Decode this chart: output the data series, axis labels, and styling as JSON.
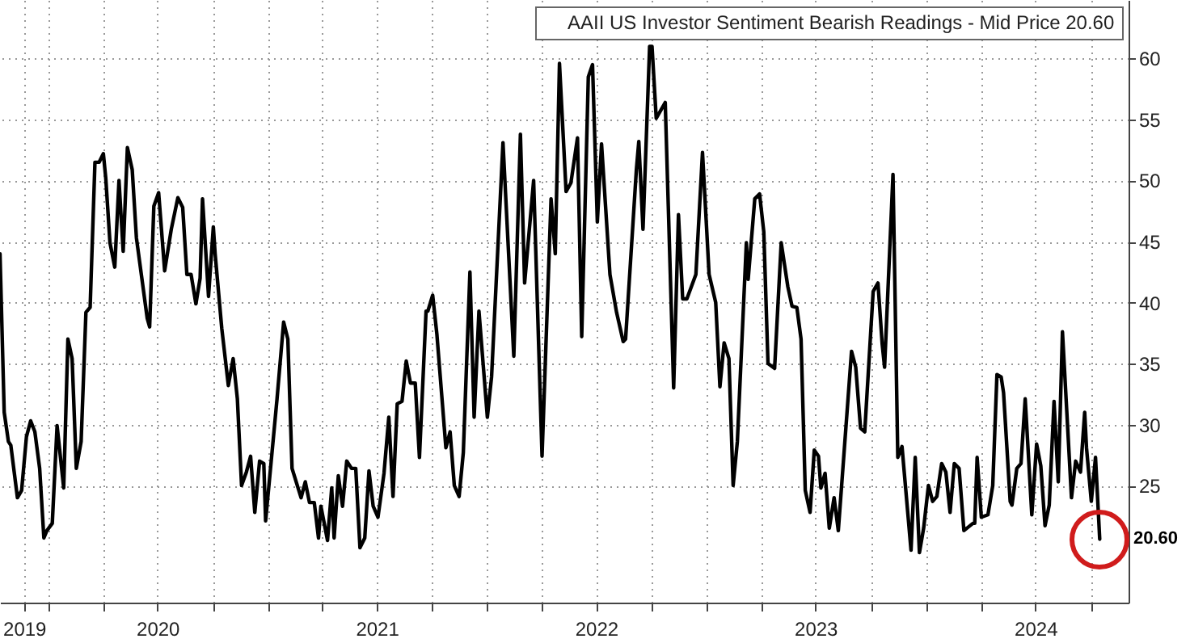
{
  "chart_data": {
    "type": "line",
    "x": [
      "2019-10-13",
      "2019-10-20",
      "2019-10-27",
      "2019-10-31",
      "2019-11-11",
      "2019-11-18",
      "2019-11-26",
      "2019-12-03",
      "2019-12-10",
      "2019-12-18",
      "2019-12-25",
      "2019-12-30",
      "2020-01-08",
      "2020-01-16",
      "2020-01-27",
      "2020-02-03",
      "2020-02-10",
      "2020-02-17",
      "2020-02-25",
      "2020-03-04",
      "2020-03-11",
      "2020-03-19",
      "2020-03-26",
      "2020-04-02",
      "2020-04-06",
      "2020-04-13",
      "2020-04-21",
      "2020-04-28",
      "2020-05-05",
      "2020-05-12",
      "2020-05-20",
      "2020-05-27",
      "2020-06-14",
      "2020-06-18",
      "2020-06-25",
      "2020-07-03",
      "2020-07-13",
      "2020-07-24",
      "2020-08-04",
      "2020-08-12",
      "2020-08-19",
      "2020-08-26",
      "2020-09-03",
      "2020-09-10",
      "2020-09-14",
      "2020-09-24",
      "2020-10-02",
      "2020-10-05",
      "2020-10-16",
      "2020-10-27",
      "2020-11-04",
      "2020-11-11",
      "2020-11-18",
      "2020-11-26",
      "2020-12-03",
      "2020-12-10",
      "2020-12-18",
      "2020-12-25",
      "2020-12-28",
      "2021-01-16",
      "2021-01-27",
      "2021-02-03",
      "2021-02-10",
      "2021-02-25",
      "2021-03-04",
      "2021-03-11",
      "2021-03-19",
      "2021-03-26",
      "2021-03-30",
      "2021-04-10",
      "2021-04-17",
      "2021-04-21",
      "2021-04-28",
      "2021-05-05",
      "2021-05-12",
      "2021-05-20",
      "2021-05-27",
      "2021-06-03",
      "2021-06-11",
      "2021-06-18",
      "2021-06-25",
      "2021-07-03",
      "2021-07-13",
      "2021-07-21",
      "2021-07-28",
      "2021-08-04",
      "2021-08-12",
      "2021-08-19",
      "2021-08-26",
      "2021-09-03",
      "2021-09-10",
      "2021-09-21",
      "2021-09-24",
      "2021-10-02",
      "2021-10-09",
      "2021-10-24",
      "2021-10-31",
      "2021-11-07",
      "2021-11-15",
      "2021-11-22",
      "2021-12-03",
      "2021-12-10",
      "2021-12-18",
      "2022-01-01",
      "2022-01-08",
      "2022-01-27",
      "2022-02-14",
      "2022-02-25",
      "2022-03-04",
      "2022-03-19",
      "2022-04-02",
      "2022-04-17",
      "2022-04-24",
      "2022-05-01",
      "2022-05-12",
      "2022-05-20",
      "2022-05-31",
      "2022-06-07",
      "2022-06-18",
      "2022-06-25",
      "2022-07-03",
      "2022-07-10",
      "2022-07-24",
      "2022-08-04",
      "2022-08-15",
      "2022-08-19",
      "2022-09-06",
      "2022-09-10",
      "2022-09-17",
      "2022-09-28",
      "2022-10-02",
      "2022-10-09",
      "2022-10-24",
      "2022-11-07",
      "2022-11-15",
      "2022-11-22",
      "2022-11-29",
      "2022-12-14",
      "2022-12-25",
      "2023-01-05",
      "2023-01-16",
      "2023-01-23",
      "2023-01-30",
      "2023-02-07",
      "2023-02-14",
      "2023-02-21",
      "2023-03-08",
      "2023-03-11",
      "2023-03-22",
      "2023-03-30",
      "2023-04-06",
      "2023-04-13",
      "2023-04-24",
      "2023-05-05",
      "2023-05-16",
      "2023-05-23",
      "2023-05-31",
      "2023-06-07",
      "2023-06-14",
      "2023-06-22",
      "2023-06-29",
      "2023-07-06",
      "2023-07-10",
      "2023-07-17",
      "2023-07-24",
      "2023-08-01",
      "2023-08-08",
      "2023-08-30",
      "2023-09-06",
      "2023-09-14",
      "2023-09-21",
      "2023-10-05",
      "2023-10-13",
      "2023-10-20",
      "2023-10-24",
      "2023-11-07",
      "2023-11-15",
      "2023-11-22",
      "2023-12-07",
      "2023-12-14",
      "2023-12-21",
      "2023-12-28",
      "2024-01-05",
      "2024-01-12",
      "2024-01-19",
      "2024-01-27",
      "2024-02-03",
      "2024-02-10",
      "2024-02-17",
      "2024-02-25",
      "2024-03-04",
      "2024-03-19",
      "2024-03-22",
      "2024-03-26",
      "2024-04-02",
      "2024-04-13",
      "2024-04-21",
      "2024-04-28",
      "2024-05-05",
      "2024-05-09",
      "2024-05-20",
      "2024-05-23",
      "2024-05-31",
      "2024-06-07",
      "2024-06-14",
      "2024-06-25",
      "2024-07-03",
      "2024-07-10",
      "2024-07-17",
      "2024-07-24",
      "2024-08-01",
      "2024-08-08",
      "2024-08-15",
      "2024-08-30",
      "2024-09-06",
      "2024-09-14",
      "2024-09-21",
      "2024-09-24",
      "2024-10-02",
      "2024-10-09",
      "2024-10-16"
    ],
    "series": [
      {
        "name": "AAII US Investor Sentiment Bearish Readings - Mid Price 20.60",
        "color": "#000000",
        "axis": "y2",
        "values": [
          44.0,
          31.0,
          28.6,
          28.3,
          24.0,
          24.6,
          29.0,
          30.3,
          29.4,
          26.4,
          20.7,
          21.3,
          21.9,
          29.9,
          24.8,
          37.0,
          35.4,
          26.4,
          28.6,
          39.2,
          39.6,
          51.5,
          51.5,
          52.2,
          50.2,
          44.9,
          42.9,
          50.0,
          44.2,
          52.7,
          50.9,
          45.3,
          38.7,
          38.0,
          47.9,
          49.0,
          42.6,
          46.0,
          48.6,
          47.8,
          42.3,
          42.3,
          39.9,
          42.0,
          48.5,
          40.5,
          46.2,
          44.0,
          37.9,
          33.2,
          35.4,
          32.1,
          25.0,
          26.1,
          27.4,
          22.8,
          27.0,
          26.8,
          22.1,
          32.1,
          38.4,
          37.0,
          26.4,
          24.0,
          25.3,
          23.6,
          23.6,
          20.7,
          23.3,
          20.5,
          24.8,
          20.7,
          25.8,
          23.3,
          27.0,
          26.4,
          26.4,
          19.9,
          20.7,
          26.2,
          23.3,
          22.4,
          26.0,
          30.6,
          24.1,
          31.7,
          31.9,
          35.2,
          33.4,
          33.4,
          27.3,
          39.3,
          39.3,
          40.6,
          37.4,
          28.1,
          29.4,
          25.0,
          24.1,
          27.7,
          42.5,
          30.6,
          39.3,
          30.6,
          33.9,
          53.1,
          35.6,
          53.8,
          41.6,
          50.0,
          27.4,
          48.5,
          44.0,
          59.6,
          49.1,
          49.8,
          53.5,
          37.2,
          58.5,
          59.5,
          46.6,
          53.0,
          42.3,
          39.2,
          36.8,
          37.0,
          50.9,
          53.2,
          46.0,
          61.0,
          61.0,
          55.1,
          56.4,
          33.0,
          47.2,
          40.3,
          40.3,
          42.3,
          52.3,
          42.3,
          40.0,
          33.1,
          36.7,
          35.4,
          25.0,
          28.6,
          44.9,
          41.9,
          48.5,
          48.9,
          45.8,
          35.0,
          34.6,
          44.9,
          41.3,
          39.7,
          39.6,
          37.0,
          24.6,
          22.8,
          27.9,
          27.4,
          24.8,
          26.0,
          21.5,
          24.0,
          21.3,
          36.0,
          34.7,
          29.7,
          29.4,
          40.9,
          41.6,
          36.6,
          34.7,
          50.5,
          27.3,
          28.2,
          19.7,
          27.3,
          19.5,
          21.5,
          25.0,
          23.7,
          24.1,
          26.8,
          26.1,
          22.8,
          26.8,
          26.4,
          21.3,
          21.9,
          21.9,
          27.3,
          22.4,
          22.6,
          25.0,
          34.1,
          33.9,
          32.6,
          23.7,
          23.4,
          26.4,
          26.8,
          32.1,
          22.6,
          28.4,
          26.6,
          21.7,
          23.4,
          31.9,
          25.3,
          37.6,
          24.0,
          27.0,
          26.1,
          31.0,
          28.1,
          23.7,
          27.3,
          20.6
        ]
      }
    ],
    "xlim": [
      "2019-10-13",
      "2024-12-03"
    ],
    "xticks": [
      {
        "value": "2019-11-22",
        "label": "2019"
      },
      {
        "value": "2020-01-01",
        "label": null
      },
      {
        "value": "2020-04-01",
        "label": null
      },
      {
        "value": "2020-07-01",
        "label": "2020"
      },
      {
        "value": "2020-10-01",
        "label": null
      },
      {
        "value": "2021-01-01",
        "label": null
      },
      {
        "value": "2021-04-01",
        "label": null
      },
      {
        "value": "2021-07-01",
        "label": "2021"
      },
      {
        "value": "2021-10-01",
        "label": null
      },
      {
        "value": "2022-01-01",
        "label": null
      },
      {
        "value": "2022-04-01",
        "label": null
      },
      {
        "value": "2022-07-01",
        "label": "2022"
      },
      {
        "value": "2022-10-01",
        "label": null
      },
      {
        "value": "2023-01-01",
        "label": null
      },
      {
        "value": "2023-04-01",
        "label": null
      },
      {
        "value": "2023-07-01",
        "label": "2023"
      },
      {
        "value": "2023-10-01",
        "label": null
      },
      {
        "value": "2024-01-01",
        "label": null
      },
      {
        "value": "2024-04-01",
        "label": null
      },
      {
        "value": "2024-07-01",
        "label": "2024"
      },
      {
        "value": "2024-10-01",
        "label": null
      }
    ],
    "y2lim": [
      15.4,
      64.8
    ],
    "y2ticks": [
      25,
      30,
      35,
      40,
      45,
      50,
      55,
      60
    ],
    "grid": true,
    "legend": "top right",
    "line_style": "solid",
    "annotations": [
      "20.60"
    ]
  }
}
